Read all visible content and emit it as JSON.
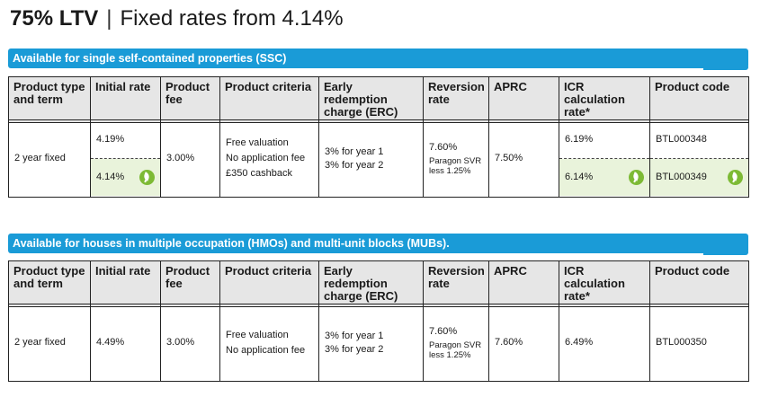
{
  "header": {
    "ltv": "75% LTV",
    "separator": "|",
    "subtitle": "Fixed rates from 4.14%"
  },
  "columns": [
    "Product type and term",
    "Initial rate",
    "Product fee",
    "Product criteria",
    "Early redemption charge (ERC)",
    "Reversion rate",
    "APRC",
    "ICR calculation rate*",
    "Product code"
  ],
  "sections": [
    {
      "banner": "Available for single self-contained properties (SSC)",
      "row": {
        "term": "2 year fixed",
        "rates": [
          "4.19%",
          "4.14%"
        ],
        "fee": "3.00%",
        "criteria": [
          "Free valuation",
          "No application fee",
          "£350 cashback"
        ],
        "erc": [
          "3% for year 1",
          "3% for year 2"
        ],
        "reversion": "7.60%",
        "reversion_note_1": "Paragon SVR",
        "reversion_note_2": "less 1.25%",
        "aprc": "7.50%",
        "icr": [
          "6.19%",
          "6.14%"
        ],
        "codes": [
          "BTL000348",
          "BTL000349"
        ]
      }
    },
    {
      "banner": "Available for houses in multiple occupation (HMOs) and multi-unit blocks (MUBs).",
      "row": {
        "term": "2 year fixed",
        "rate": "4.49%",
        "fee": "3.00%",
        "criteria": [
          "Free valuation",
          "No application fee"
        ],
        "erc": [
          "3% for year 1",
          "3% for year 2"
        ],
        "reversion": "7.60%",
        "reversion_note_1": "Paragon SVR",
        "reversion_note_2": "less 1.25%",
        "aprc": "7.60%",
        "icr": "6.49%",
        "code": "BTL000350"
      }
    }
  ],
  "icons": {
    "green_product": "leaf-icon"
  },
  "colors": {
    "banner": "#1a9bd7",
    "green_highlight": "#e9f3db",
    "leaf": "#7dba35",
    "header_fill": "#e6e6e6"
  }
}
